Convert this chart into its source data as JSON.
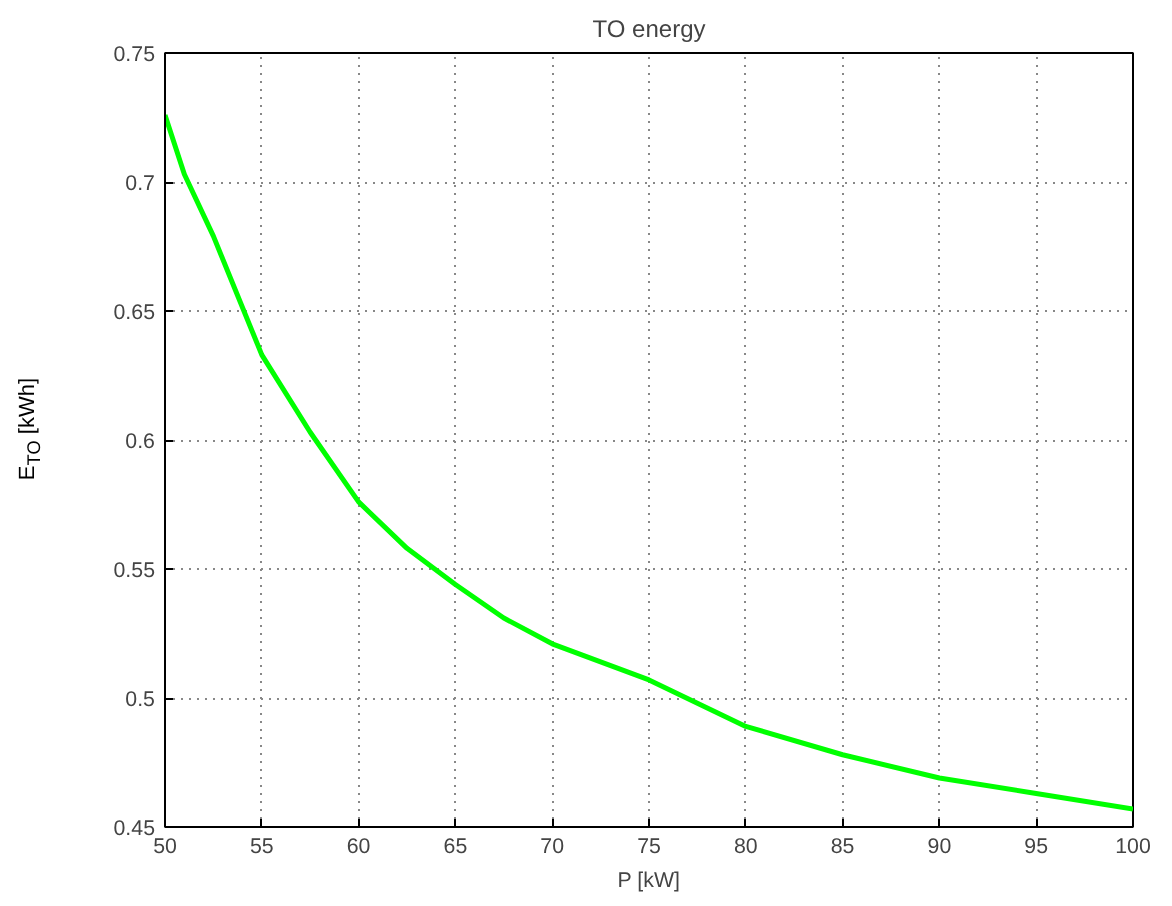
{
  "chart_data": {
    "type": "line",
    "title": "TO energy",
    "xlabel": "P [kW]",
    "ylabel": "E$_{TO}$ [kWh]",
    "x": [
      50,
      51,
      52.5,
      55,
      57.5,
      60,
      62.5,
      65,
      67.5,
      70,
      75,
      80,
      85,
      90,
      95,
      100
    ],
    "series": [
      {
        "color": "#00ff00",
        "values": [
          0.726,
          0.703,
          0.679,
          0.633,
          0.603,
          0.576,
          0.558,
          0.544,
          0.531,
          0.521,
          0.507,
          0.489,
          0.478,
          0.469,
          0.463,
          0.457
        ]
      }
    ],
    "xlim": [
      50,
      100
    ],
    "xticks": [
      50,
      55,
      60,
      65,
      70,
      75,
      80,
      85,
      90,
      95,
      100
    ],
    "ylim": [
      0.45,
      0.75
    ],
    "yticks": [
      0.45,
      0.5,
      0.55,
      0.6,
      0.65,
      0.7,
      0.75
    ],
    "grid": true,
    "line_style": "solid"
  }
}
